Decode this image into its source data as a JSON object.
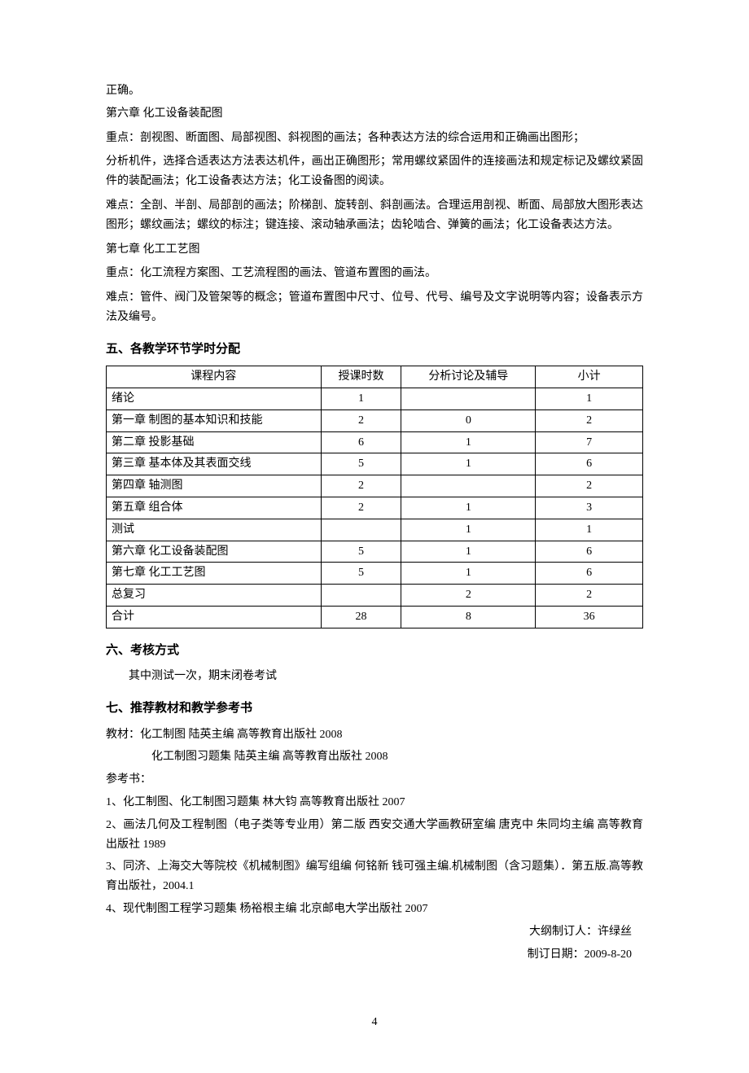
{
  "intro": {
    "line1": "正确。",
    "ch6_title": "第六章  化工设备装配图",
    "ch6_focus": "重点：剖视图、断面图、局部视图、斜视图的画法；各种表达方法的综合运用和正确画出图形；",
    "ch6_analysis": "分析机件，选择合适表达方法表达机件，画出正确图形；常用螺纹紧固件的连接画法和规定标记及螺纹紧固件的装配画法；化工设备表达方法；化工设备图的阅读。",
    "ch6_difficulty": "难点：全剖、半剖、局部剖的画法；阶梯剖、旋转剖、斜剖画法。合理运用剖视、断面、局部放大图形表达图形；螺纹画法；螺纹的标注；键连接、滚动轴承画法；齿轮啮合、弹簧的画法；化工设备表达方法。",
    "ch7_title": "第七章  化工工艺图",
    "ch7_focus": "重点：化工流程方案图、工艺流程图的画法、管道布置图的画法。",
    "ch7_difficulty": "难点：管件、阀门及管架等的概念；管道布置图中尺寸、位号、代号、编号及文字说明等内容；设备表示方法及编号。"
  },
  "section5": {
    "heading": "五、各教学环节学时分配",
    "table": {
      "headers": [
        "课程内容",
        "授课时数",
        "分析讨论及辅导",
        "小计"
      ],
      "rows": [
        {
          "label": "绪论",
          "hours": "1",
          "discuss": "",
          "total": "1"
        },
        {
          "label": "第一章  制图的基本知识和技能",
          "hours": "2",
          "discuss": "0",
          "total": "2"
        },
        {
          "label": "第二章    投影基础",
          "hours": "6",
          "discuss": "1",
          "total": "7"
        },
        {
          "label": "第三章    基本体及其表面交线",
          "hours": "5",
          "discuss": "1",
          "total": "6"
        },
        {
          "label": "第四章  轴测图",
          "hours": "2",
          "discuss": "",
          "total": "2"
        },
        {
          "label": "第五章  组合体",
          "hours": "2",
          "discuss": "1",
          "total": "3"
        },
        {
          "label": "测试",
          "hours": "",
          "discuss": "1",
          "total": "1"
        },
        {
          "label": "第六章  化工设备装配图",
          "hours": "5",
          "discuss": "1",
          "total": "6"
        },
        {
          "label": "第七章  化工工艺图",
          "hours": "5",
          "discuss": "1",
          "total": "6"
        },
        {
          "label": "总复习",
          "hours": "",
          "discuss": "2",
          "total": "2"
        },
        {
          "label": "合计",
          "hours": "28",
          "discuss": "8",
          "total": "36"
        }
      ]
    }
  },
  "section6": {
    "heading": "六、考核方式",
    "content": "其中测试一次，期末闭卷考试"
  },
  "section7": {
    "heading": "七、推荐教材和教学参考书",
    "textbook_label": "教材：化工制图  陆英主编  高等教育出版社  2008",
    "textbook2": "化工制图习题集  陆英主编  高等教育出版社  2008",
    "ref_label": "参考书：",
    "ref1": "1、化工制图、化工制图习题集  林大钧  高等教育出版社  2007",
    "ref2": "2、画法几何及工程制图（电子类等专业用）第二版  西安交通大学画教研室编  唐克中  朱同均主编  高等教育出版社 1989",
    "ref3": "3、同济、上海交大等院校《机械制图》编写组编  何铭新  钱可强主编.机械制图（含习题集）．第五版.高等教育出版社，2004.1",
    "ref4": "4、现代制图工程学习题集  杨裕根主编  北京邮电大学出版社  2007"
  },
  "footer": {
    "author": "大纲制订人：许绿丝",
    "date": "制订日期：2009-8-20",
    "page": "4"
  }
}
